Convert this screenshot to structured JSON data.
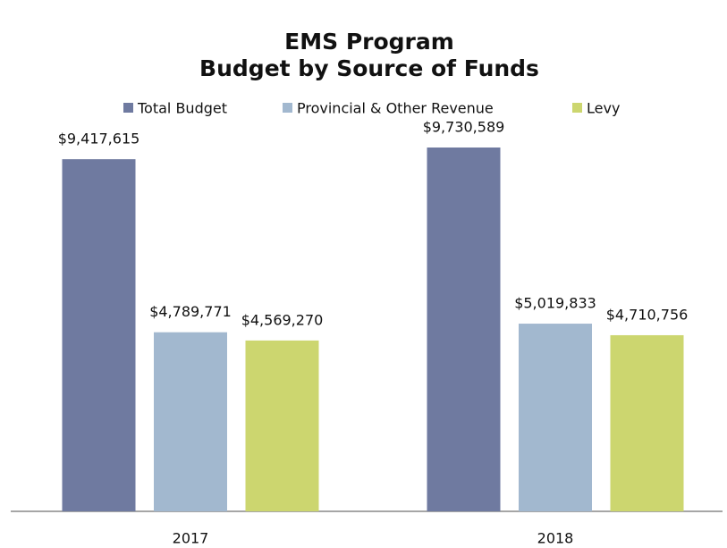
{
  "chart_data": {
    "type": "bar",
    "title": "EMS Program",
    "subtitle": "Budget by Source of Funds",
    "categories": [
      "2017",
      "2018"
    ],
    "series": [
      {
        "name": "Total Budget",
        "color": "#6f7aa0",
        "values": [
          9417615,
          9730589
        ],
        "value_labels": [
          "$9,417,615",
          "$9,730,589"
        ]
      },
      {
        "name": "Provincial & Other Revenue",
        "color": "#a2b8cf",
        "values": [
          4789771,
          5019833
        ],
        "value_labels": [
          "$4,789,771",
          "$5,019,833"
        ]
      },
      {
        "name": "Levy",
        "color": "#ccd66f",
        "values": [
          4569270,
          4710756
        ],
        "value_labels": [
          "$4,569,270",
          "$4,710,756"
        ]
      }
    ]
  }
}
